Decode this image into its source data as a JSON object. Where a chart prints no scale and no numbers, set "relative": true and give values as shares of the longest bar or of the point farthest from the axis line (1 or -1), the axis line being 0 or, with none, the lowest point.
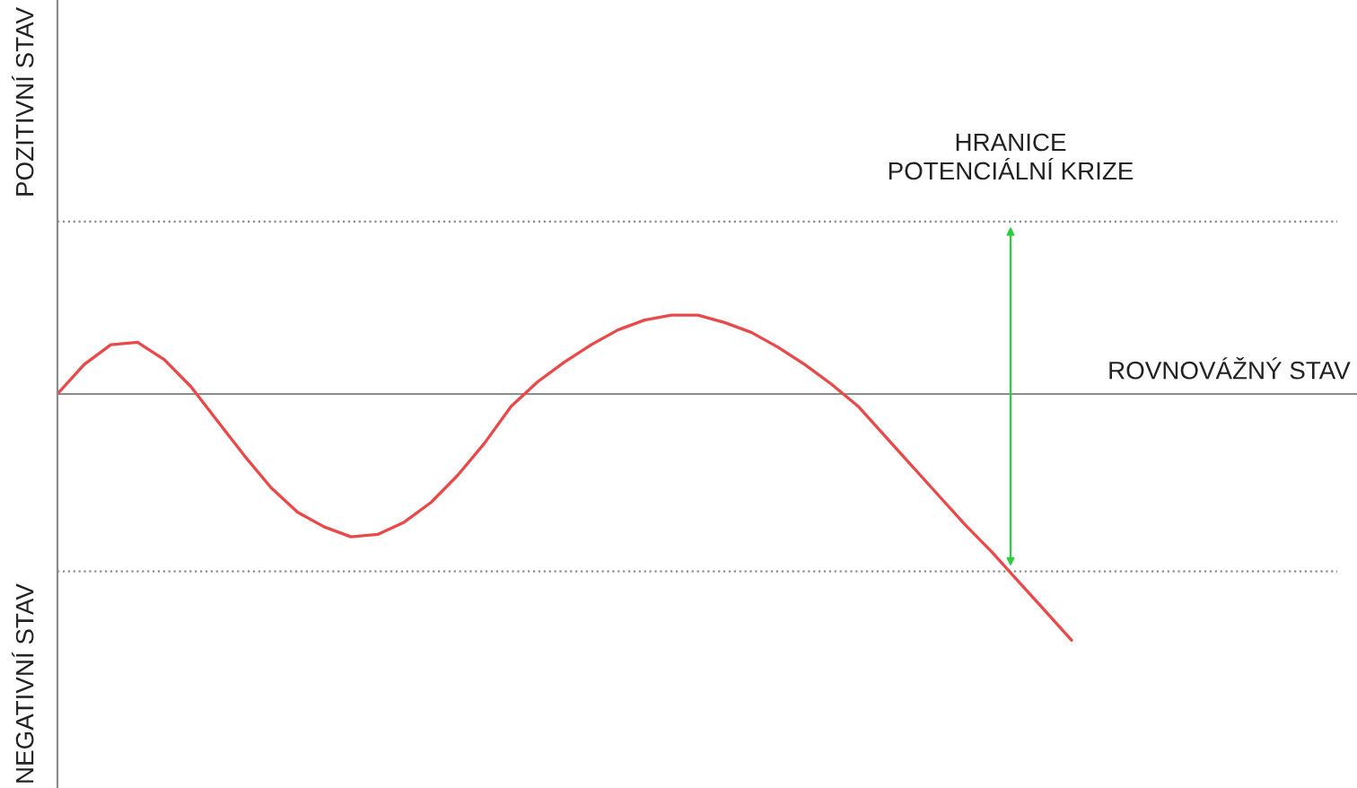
{
  "chart_data": {
    "type": "line",
    "relative": true,
    "categories": [
      null,
      null,
      null,
      null,
      null,
      null,
      null,
      null,
      null,
      null,
      null,
      null,
      null,
      null,
      null,
      null,
      null,
      null,
      null,
      null,
      null,
      null,
      null,
      null,
      null,
      null,
      null,
      null,
      null,
      null,
      null,
      null,
      null,
      null,
      null,
      null,
      null,
      null,
      null
    ],
    "series": [
      {
        "color": "#e84a4a",
        "values": [
          0,
          0.12,
          0.2,
          0.21,
          0.14,
          0.03,
          -0.11,
          -0.25,
          -0.38,
          -0.48,
          -0.54,
          -0.58,
          -0.57,
          -0.52,
          -0.44,
          -0.33,
          -0.2,
          -0.05,
          0.05,
          0.13,
          0.2,
          0.26,
          0.3,
          0.32,
          0.32,
          0.29,
          0.25,
          0.19,
          0.12,
          0.04,
          -0.05,
          -0.17,
          -0.29,
          -0.41,
          -0.53,
          -0.64,
          -0.76,
          -0.88,
          -1
        ]
      }
    ],
    "ref_lines": [
      {
        "axis": "y",
        "value": 0.7,
        "color": "#8c8c8c",
        "line_style": "dotted"
      },
      {
        "axis": "y",
        "value": 0,
        "label": "ROVNOVÁŽNÝ STAV",
        "color": "#8c8c8c",
        "line_style": "solid"
      },
      {
        "axis": "y",
        "value": -0.72,
        "color": "#8c8c8c",
        "line_style": "dotted"
      }
    ],
    "annotations": [
      "HRANICE\nPOTENCIÁLNÍ KRIZE",
      "POZITIVNÍ STAV",
      "NEGATIVNÍ STAV"
    ],
    "line_style": "solid"
  }
}
